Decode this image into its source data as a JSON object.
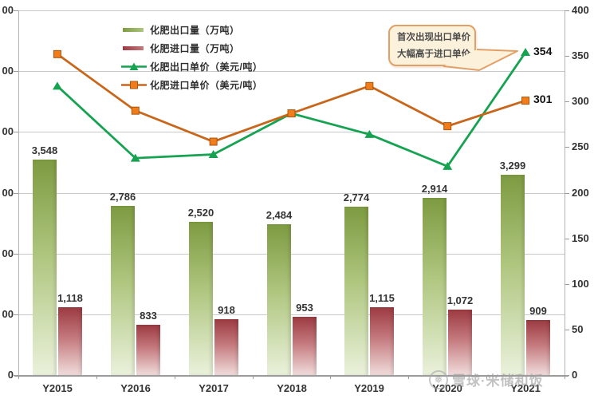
{
  "chart_data": {
    "type": "bar+line combo",
    "categories": [
      "Y2015",
      "Y2016",
      "Y2017",
      "Y2018",
      "Y2019",
      "Y2020",
      "Y2021"
    ],
    "series": [
      {
        "name": "化肥出口量（万吨）",
        "type": "bar",
        "axis": "left",
        "values": [
          3548,
          2786,
          2520,
          2484,
          2774,
          2914,
          3299
        ],
        "labels": [
          "3,548",
          "2,786",
          "2,520",
          "2,484",
          "2,774",
          "2,914",
          "3,299"
        ],
        "color_top": "#7d9b41",
        "color_mid": "#afc67f",
        "color_bottom": "#eaf1db"
      },
      {
        "name": "化肥进口量（万吨）",
        "type": "bar",
        "axis": "left",
        "values": [
          1118,
          833,
          918,
          953,
          1115,
          1072,
          909
        ],
        "labels": [
          "1,118",
          "833",
          "918",
          "953",
          "1,115",
          "1,072",
          "909"
        ],
        "color_top": "#9c3a41",
        "color_mid": "#c4797d",
        "color_bottom": "#f0dcdb"
      },
      {
        "name": "化肥出口单价（美元/吨）",
        "type": "line",
        "axis": "right",
        "marker": "triangle",
        "color": "#16a351",
        "values": [
          317,
          238,
          242,
          287,
          264,
          229,
          354
        ],
        "values_estimated": true
      },
      {
        "name": "化肥进口单价（美元/吨）",
        "type": "line",
        "axis": "right",
        "marker": "square",
        "color": "#c8671c",
        "marker_fill": "#f07d1a",
        "marker_stroke": "#a8560f",
        "values": [
          352,
          290,
          256,
          287,
          317,
          273,
          301
        ],
        "values_estimated": true
      }
    ],
    "left_axis": {
      "min": 0,
      "max": 6000,
      "step": 1000,
      "visible_labels": [
        "00",
        "00",
        "00",
        "00",
        "00",
        "00",
        "0"
      ],
      "note": "labels clipped at left edge of image"
    },
    "right_axis": {
      "min": 0,
      "max": 400,
      "step": 50,
      "labels": [
        "400",
        "350",
        "300",
        "250",
        "200",
        "150",
        "100",
        "50",
        "0"
      ]
    },
    "end_labels": [
      {
        "text": "354",
        "series_index": 2
      },
      {
        "text": "301",
        "series_index": 3
      }
    ],
    "annotation": {
      "line1": "首次出现出口单价",
      "line2": "大幅高于进口单价"
    },
    "grid": true,
    "legend_position": "inside-top-left"
  },
  "watermark": {
    "logo_glyph": "❅",
    "text": "雪球·米储和饭"
  }
}
